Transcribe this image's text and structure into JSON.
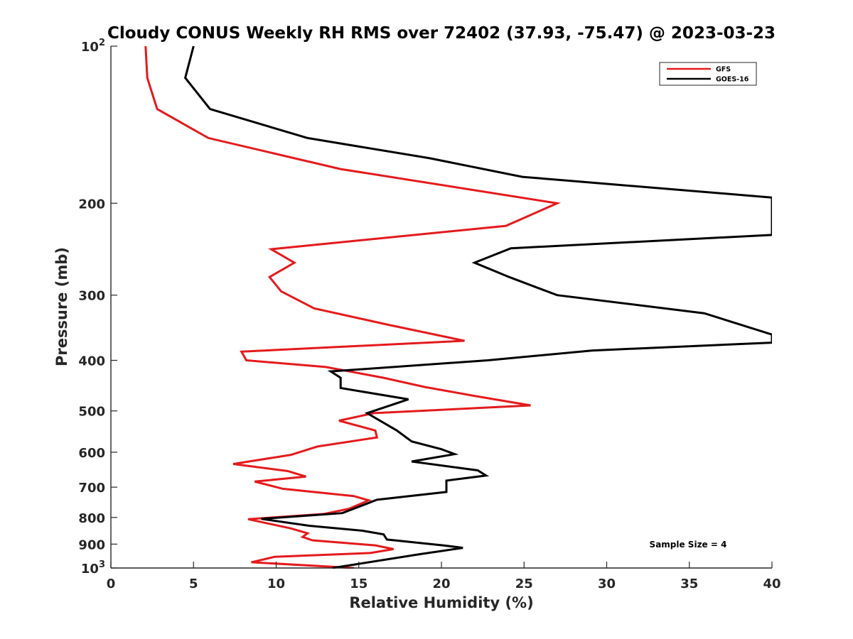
{
  "chart_data": {
    "type": "line",
    "title": "Cloudy CONUS Weekly RH RMS over 72402 (37.93, -75.47) @ 2023-03-23",
    "xlabel": "Relative Humidity (%)",
    "ylabel": "Pressure (mb)",
    "xlim": [
      0,
      40
    ],
    "ylim": [
      100,
      1000
    ],
    "y_scale": "log",
    "y_reversed": true,
    "grid": false,
    "legend_position": "top-right",
    "x_ticks": [
      0,
      5,
      10,
      15,
      20,
      25,
      30,
      35,
      40
    ],
    "x_tick_labels": [
      "0",
      "5",
      "10",
      "15",
      "20",
      "25",
      "30",
      "35",
      "40"
    ],
    "y_ticks": [
      100,
      200,
      300,
      400,
      500,
      600,
      700,
      800,
      900,
      1000
    ],
    "y_tick_labels": [
      {
        "base": "10",
        "exp": "2"
      },
      {
        "base": "200",
        "exp": ""
      },
      {
        "base": "300",
        "exp": ""
      },
      {
        "base": "400",
        "exp": ""
      },
      {
        "base": "500",
        "exp": ""
      },
      {
        "base": "600",
        "exp": ""
      },
      {
        "base": "700",
        "exp": ""
      },
      {
        "base": "800",
        "exp": ""
      },
      {
        "base": "900",
        "exp": ""
      },
      {
        "base": "10",
        "exp": "3"
      }
    ],
    "annotation": "Sample Size = 4",
    "series": [
      {
        "name": "GFS",
        "color": "#e41a1c",
        "points": [
          [
            2.1,
            100
          ],
          [
            2.2,
            115
          ],
          [
            2.8,
            132
          ],
          [
            5.9,
            150
          ],
          [
            13.9,
            172
          ],
          [
            27.0,
            200
          ],
          [
            23.9,
            221
          ],
          [
            9.7,
            245
          ],
          [
            11.1,
            260
          ],
          [
            9.6,
            277
          ],
          [
            10.3,
            295
          ],
          [
            12.3,
            318
          ],
          [
            16.8,
            342
          ],
          [
            21.4,
            367
          ],
          [
            7.9,
            385
          ],
          [
            8.2,
            400
          ],
          [
            13.0,
            412
          ],
          [
            16.5,
            432
          ],
          [
            19.0,
            450
          ],
          [
            22.0,
            468
          ],
          [
            25.4,
            488
          ],
          [
            15.9,
            505
          ],
          [
            13.8,
            522
          ],
          [
            16.0,
            545
          ],
          [
            16.1,
            562
          ],
          [
            12.5,
            585
          ],
          [
            10.9,
            607
          ],
          [
            7.4,
            632
          ],
          [
            10.7,
            652
          ],
          [
            11.8,
            668
          ],
          [
            8.7,
            683
          ],
          [
            10.4,
            705
          ],
          [
            14.7,
            728
          ],
          [
            15.6,
            742
          ],
          [
            14.4,
            770
          ],
          [
            12.9,
            788
          ],
          [
            8.3,
            806
          ],
          [
            10.9,
            840
          ],
          [
            11.9,
            858
          ],
          [
            11.6,
            872
          ],
          [
            12.2,
            885
          ],
          [
            16.0,
            905
          ],
          [
            17.1,
            920
          ],
          [
            15.7,
            936
          ],
          [
            9.9,
            952
          ],
          [
            8.5,
            975
          ],
          [
            14.7,
            1000
          ]
        ]
      },
      {
        "name": "GOES-16",
        "color": "#000000",
        "points": [
          [
            5.0,
            100
          ],
          [
            4.5,
            115
          ],
          [
            6.0,
            132
          ],
          [
            11.9,
            150
          ],
          [
            19.3,
            164
          ],
          [
            24.9,
            178
          ],
          [
            40.0,
            195
          ],
          [
            40.0,
            230
          ],
          [
            24.2,
            244
          ],
          [
            22.0,
            260
          ],
          [
            24.1,
            277
          ],
          [
            27.0,
            300
          ],
          [
            35.9,
            325
          ],
          [
            40.0,
            357
          ],
          [
            40.0,
            370
          ],
          [
            29.1,
            383
          ],
          [
            22.8,
            400
          ],
          [
            13.3,
            420
          ],
          [
            13.9,
            432
          ],
          [
            13.9,
            452
          ],
          [
            18.0,
            475
          ],
          [
            15.5,
            505
          ],
          [
            17.3,
            545
          ],
          [
            18.2,
            572
          ],
          [
            20.0,
            592
          ],
          [
            20.8,
            605
          ],
          [
            18.2,
            625
          ],
          [
            22.2,
            650
          ],
          [
            22.7,
            665
          ],
          [
            20.3,
            680
          ],
          [
            20.3,
            715
          ],
          [
            16.1,
            740
          ],
          [
            14.0,
            785
          ],
          [
            9.1,
            805
          ],
          [
            12.0,
            830
          ],
          [
            15.2,
            848
          ],
          [
            16.5,
            862
          ],
          [
            16.7,
            882
          ],
          [
            20.1,
            905
          ],
          [
            21.3,
            915
          ],
          [
            18.6,
            942
          ],
          [
            13.4,
            1000
          ]
        ]
      }
    ]
  }
}
